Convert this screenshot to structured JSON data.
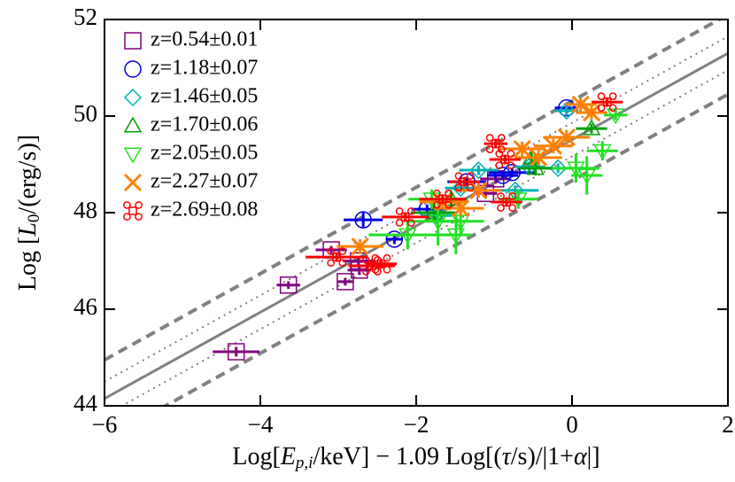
{
  "chart_data": {
    "type": "scatter",
    "xlabel_parts": [
      "Log[",
      "E",
      "p,i",
      "/keV] − 1.09 Log[(",
      "τ",
      "/s)/|1+",
      "α",
      "|]"
    ],
    "ylabel_parts": [
      "Log [",
      "L",
      "0",
      "/(erg/s)]"
    ],
    "xlim": [
      -6,
      2
    ],
    "ylim": [
      44,
      52
    ],
    "xticks": [
      {
        "value": -6,
        "label": "−6"
      },
      {
        "value": -4,
        "label": "−4"
      },
      {
        "value": -2,
        "label": "−2"
      },
      0,
      2
    ],
    "yticks": [
      44,
      46,
      48,
      50,
      52
    ],
    "legend": "upper-left",
    "fit_lines": [
      {
        "style": "solid",
        "color": "#808080",
        "x": [
          -6,
          2
        ],
        "y": [
          44.15,
          51.3
        ]
      },
      {
        "style": "dotted",
        "color": "#808080",
        "x": [
          -6,
          2
        ],
        "y": [
          44.5,
          51.65
        ]
      },
      {
        "style": "dotted",
        "color": "#808080",
        "x": [
          -6,
          2
        ],
        "y": [
          43.8,
          50.95
        ]
      },
      {
        "style": "dashed",
        "color": "#808080",
        "x": [
          -6,
          2
        ],
        "y": [
          44.95,
          52.1
        ]
      },
      {
        "style": "dashed",
        "color": "#808080",
        "x": [
          -6,
          2
        ],
        "y": [
          43.3,
          50.45
        ]
      }
    ],
    "series": [
      {
        "name": "z=0.54±0.01",
        "color": "#800080",
        "marker": "square",
        "x": [
          -4.31,
          -3.64,
          -3.09,
          -2.91,
          -2.73,
          -2.74,
          -0.98,
          -1.11
        ],
        "values": [
          45.12,
          46.5,
          47.23,
          46.57,
          46.81,
          47.0,
          48.7,
          48.4
        ],
        "xerr": [
          0.3,
          0.15,
          0.2,
          0.1,
          0.15,
          0.2,
          0.2,
          0.15
        ],
        "yerr": [
          0.1,
          0.08,
          0.08,
          0.08,
          0.1,
          0.1,
          0.1,
          0.1
        ]
      },
      {
        "name": "z=1.18±0.07",
        "color": "#0000e0",
        "marker": "circle",
        "x": [
          -2.68,
          -2.28,
          -1.86,
          -1.35,
          -0.77,
          -0.07,
          -0.89
        ],
        "values": [
          47.85,
          47.45,
          48.07,
          48.64,
          48.83,
          50.17,
          48.77
        ],
        "xerr": [
          0.25,
          0.1,
          0.2,
          0.25,
          0.3,
          0.15,
          0.2
        ],
        "yerr": [
          0.15,
          0.1,
          0.1,
          0.1,
          0.1,
          0.1,
          0.1
        ]
      },
      {
        "name": "z=1.46±0.05",
        "color": "#00b0b0",
        "marker": "diamond",
        "x": [
          -1.74,
          -1.43,
          -1.2,
          -0.73,
          -0.55,
          -0.18,
          -0.07
        ],
        "values": [
          47.94,
          48.51,
          48.88,
          48.46,
          48.95,
          48.92,
          50.11
        ],
        "xerr": [
          0.2,
          0.2,
          0.25,
          0.3,
          0.2,
          0.2,
          0.15
        ],
        "yerr": [
          0.1,
          0.1,
          0.1,
          0.1,
          0.1,
          0.1,
          0.1
        ]
      },
      {
        "name": "z=1.70±0.06",
        "color": "#00a000",
        "marker": "triangle-up",
        "x": [
          -1.77,
          -1.55,
          -0.52,
          0.25,
          -0.47
        ],
        "values": [
          48.0,
          48.28,
          49.14,
          49.74,
          48.92
        ],
        "xerr": [
          0.3,
          0.2,
          0.2,
          0.2,
          0.2
        ],
        "yerr": [
          0.2,
          0.15,
          0.15,
          0.1,
          0.15
        ]
      },
      {
        "name": "z=2.05±0.05",
        "color": "#22e022",
        "marker": "triangle-down",
        "x": [
          -2.11,
          -1.8,
          -1.72,
          -1.43,
          -1.49,
          0.05,
          0.19,
          0.39,
          0.56,
          -0.69
        ],
        "values": [
          47.54,
          48.28,
          47.82,
          47.82,
          47.54,
          48.92,
          48.77,
          49.28,
          50.02,
          48.28
        ],
        "xerr": [
          0.5,
          0.3,
          0.4,
          0.3,
          0.2,
          0.3,
          0.2,
          0.2,
          0.15,
          0.25
        ],
        "yerr": [
          0.3,
          0.2,
          0.5,
          0.3,
          0.4,
          0.3,
          0.4,
          0.2,
          0.1,
          0.2
        ]
      },
      {
        "name": "z=2.27±0.07",
        "color": "#ff8000",
        "marker": "x",
        "x": [
          -2.72,
          -1.66,
          -1.43,
          -1.2,
          -0.64,
          -0.24,
          -0.07,
          0.25,
          -0.43,
          0.11
        ],
        "values": [
          47.3,
          48.22,
          48.09,
          48.46,
          49.32,
          49.38,
          49.56,
          50.07,
          49.14,
          50.24
        ],
        "xerr": [
          0.3,
          0.3,
          0.3,
          0.3,
          0.3,
          0.25,
          0.3,
          0.2,
          0.3,
          0.2
        ],
        "yerr": [
          0.15,
          0.15,
          0.15,
          0.15,
          0.15,
          0.15,
          0.15,
          0.15,
          0.15,
          0.15
        ]
      },
      {
        "name": "z=2.69±0.08",
        "color": "#ff0000",
        "marker": "cmd",
        "x": [
          -2.14,
          -2.57,
          -2.45,
          -1.66,
          -1.38,
          -0.98,
          -0.86,
          -0.84,
          0.45,
          -3.02
        ],
        "values": [
          47.91,
          46.9,
          46.94,
          48.28,
          48.64,
          49.43,
          49.1,
          48.22,
          50.29,
          47.08
        ],
        "xerr": [
          0.3,
          0.3,
          0.2,
          0.3,
          0.2,
          0.15,
          0.2,
          0.2,
          0.2,
          0.4
        ],
        "yerr": [
          0.1,
          0.1,
          0.1,
          0.1,
          0.1,
          0.1,
          0.1,
          0.1,
          0.1,
          0.1
        ]
      }
    ]
  }
}
